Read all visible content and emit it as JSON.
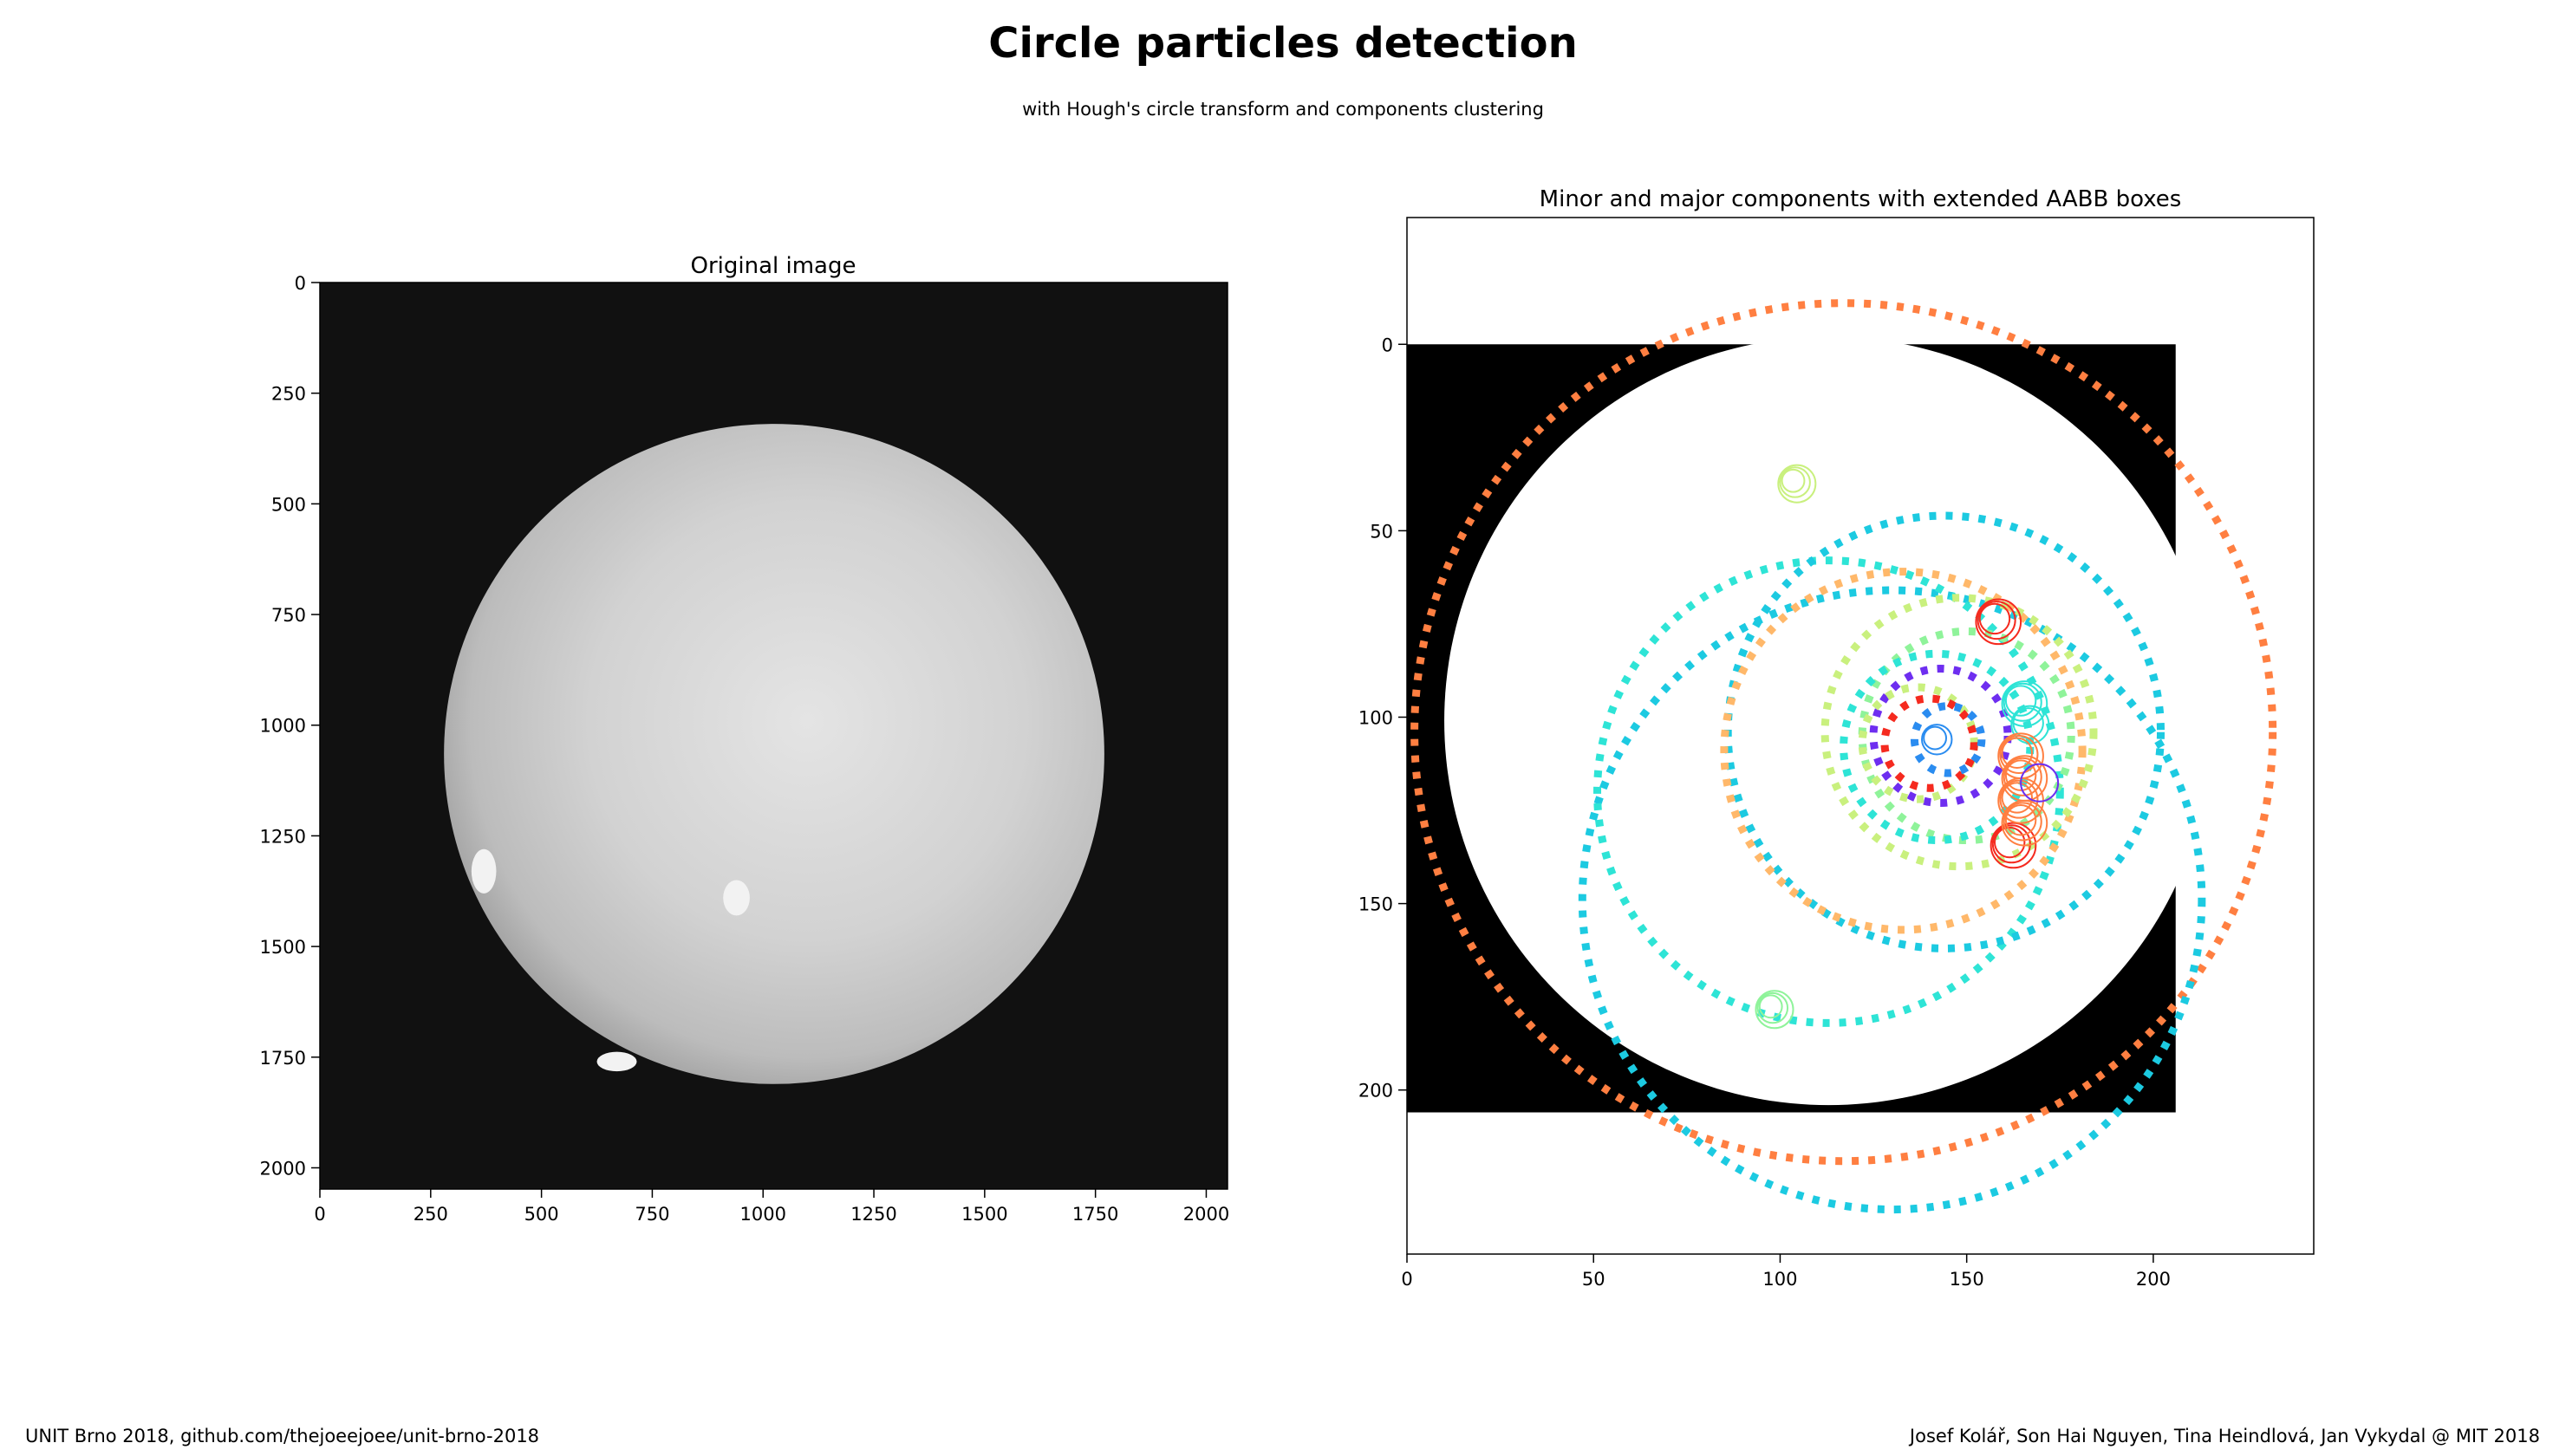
{
  "header": {
    "title": "Circle particles detection",
    "subtitle": "with Hough's circle transform and components clustering"
  },
  "footer": {
    "left": "UNIT Brno 2018, github.com/thejoeejoee/unit-brno-2018",
    "right": "Josef Kolář, Son Hai Nguyen, Tina Heindlová, Jan Vykydal @ MIT 2018"
  },
  "chart_data": [
    {
      "type": "image",
      "title": "Original image",
      "xlim": [
        0,
        2048
      ],
      "ylim": [
        2048,
        0
      ],
      "xticks": [
        0,
        250,
        500,
        750,
        1000,
        1250,
        1500,
        1750,
        2000
      ],
      "yticks": [
        0,
        250,
        500,
        750,
        1000,
        1250,
        1500,
        1750,
        2000
      ],
      "grid": false,
      "sphere": {
        "cx": 1025,
        "cy": 1065,
        "r": 745
      },
      "colormap": "gray"
    },
    {
      "type": "scatter",
      "title": "Minor and major components with extended AABB boxes",
      "xlim": [
        0,
        243
      ],
      "ylim": [
        244,
        -34
      ],
      "xticks": [
        0,
        50,
        100,
        150,
        200
      ],
      "yticks": [
        0,
        50,
        100,
        150,
        200
      ],
      "grid": false,
      "image_extent": [
        0,
        206,
        206,
        0
      ],
      "mask_circle": {
        "cx": 113,
        "cy": 101,
        "r": 103
      },
      "colors": {
        "orange": "#ff7f41",
        "cyan": "#1ccae1",
        "teal": "#2ee4d6",
        "light_orange": "#ffb86a",
        "light_green": "#c9f07e",
        "green": "#8ff39a",
        "purple": "#6e2ef0",
        "red": "#f52a1f",
        "blue": "#2a8cf0"
      },
      "dotted_circles": [
        {
          "cx": 117,
          "cy": 104,
          "r": 115,
          "color": "orange"
        },
        {
          "cx": 130,
          "cy": 149,
          "r": 83,
          "color": "cyan"
        },
        {
          "cx": 113,
          "cy": 120,
          "r": 62,
          "color": "teal"
        },
        {
          "cx": 144,
          "cy": 104,
          "r": 58,
          "color": "cyan"
        },
        {
          "cx": 133,
          "cy": 109,
          "r": 48,
          "color": "light_orange"
        },
        {
          "cx": 148,
          "cy": 104,
          "r": 36,
          "color": "light_green"
        },
        {
          "cx": 150,
          "cy": 105,
          "r": 28,
          "color": "green"
        },
        {
          "cx": 142,
          "cy": 108,
          "r": 25,
          "color": "teal"
        },
        {
          "cx": 143,
          "cy": 105,
          "r": 18,
          "color": "purple"
        },
        {
          "cx": 137,
          "cy": 107,
          "r": 15,
          "color": "light_green"
        },
        {
          "cx": 140,
          "cy": 107,
          "r": 12,
          "color": "red"
        },
        {
          "cx": 145,
          "cy": 106,
          "r": 9,
          "color": "blue"
        }
      ],
      "small_circle_clusters": [
        {
          "cx": 104,
          "cy": 37,
          "color": "light_green",
          "radii": [
            3,
            4,
            5
          ]
        },
        {
          "cx": 98,
          "cy": 178,
          "color": "green",
          "radii": [
            3,
            4,
            5
          ]
        },
        {
          "cx": 158,
          "cy": 74,
          "color": "red",
          "radii": [
            4,
            5,
            6
          ]
        },
        {
          "cx": 162,
          "cy": 134,
          "color": "red",
          "radii": [
            4,
            5,
            6
          ]
        },
        {
          "cx": 165,
          "cy": 96,
          "color": "teal",
          "radii": [
            4,
            5,
            6
          ]
        },
        {
          "cx": 167,
          "cy": 102,
          "color": "teal",
          "radii": [
            4,
            5
          ]
        },
        {
          "cx": 164,
          "cy": 110,
          "color": "orange",
          "radii": [
            4,
            5,
            6
          ]
        },
        {
          "cx": 165,
          "cy": 116,
          "color": "orange",
          "radii": [
            4,
            5,
            6
          ]
        },
        {
          "cx": 164,
          "cy": 122,
          "color": "orange",
          "radii": [
            4,
            5,
            6
          ]
        },
        {
          "cx": 165,
          "cy": 128,
          "color": "orange",
          "radii": [
            4,
            5,
            6
          ]
        },
        {
          "cx": 142,
          "cy": 106,
          "color": "blue",
          "radii": [
            3,
            4
          ]
        },
        {
          "cx": 170,
          "cy": 118,
          "color": "purple",
          "radii": [
            5
          ]
        }
      ]
    }
  ]
}
